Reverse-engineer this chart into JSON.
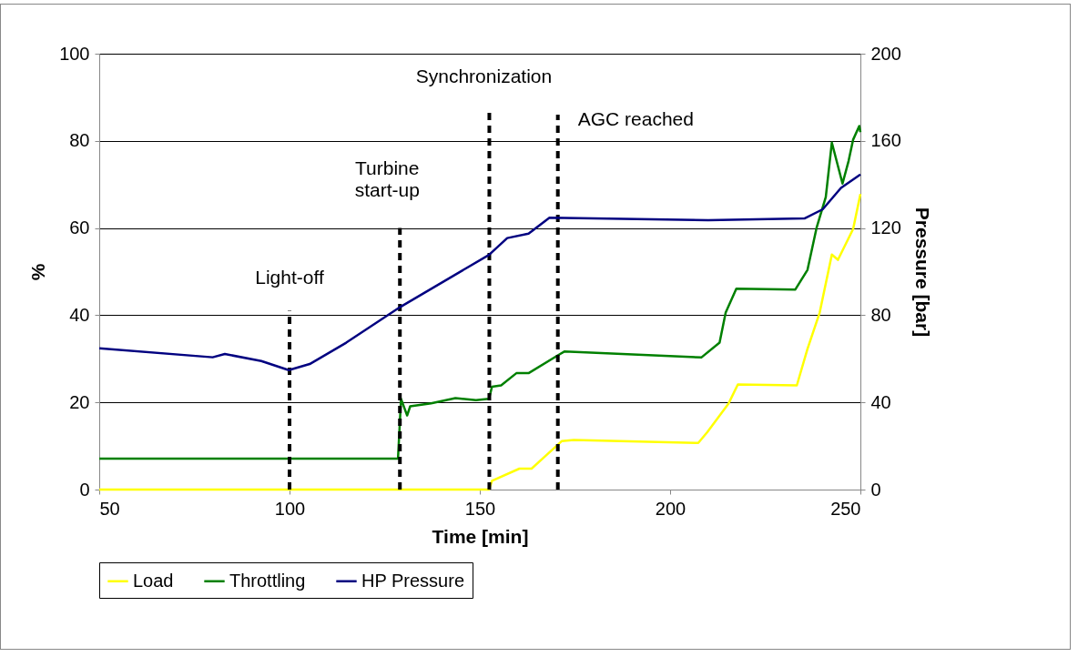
{
  "chart_data": {
    "type": "line",
    "xlabel": "Time [min]",
    "ylabel": "%",
    "y2label": "Pressure [bar]",
    "xlim": [
      50,
      250
    ],
    "xticks": [
      50,
      100,
      150,
      200,
      250
    ],
    "ylim": [
      0,
      100
    ],
    "yticks": [
      0,
      20,
      40,
      60,
      80,
      100
    ],
    "y2lim": [
      0,
      200
    ],
    "y2ticks": [
      0,
      40,
      80,
      120,
      160,
      200
    ],
    "grid": "y",
    "legend": "bottom",
    "marker": "none",
    "line_style": "solid",
    "series": [
      {
        "name": "Load",
        "color": "#ffff00",
        "x": [
          50,
          152.4,
          153.2,
          160.4,
          163.6,
          171.5,
          174.7,
          207.4,
          209.8,
          215.4,
          217.8,
          233.3,
          236.1,
          239.3,
          242.5,
          244.1,
          248.1,
          250
        ],
        "values": [
          0,
          0,
          2.0,
          4.8,
          4.8,
          11.1,
          11.4,
          10.7,
          13.2,
          19.8,
          24.1,
          23.9,
          32.3,
          40.6,
          53.9,
          52.7,
          59.8,
          67.8
        ]
      },
      {
        "name": "Throttling",
        "color": "#008000",
        "x": [
          50,
          128.5,
          129.3,
          130.9,
          131.7,
          137.2,
          143.6,
          149,
          152.4,
          153.2,
          155.6,
          159.6,
          162.8,
          170.7,
          172.3,
          208.2,
          213,
          214.6,
          217.4,
          232.9,
          236.1,
          238.5,
          240.9,
          242.5,
          245.3,
          246.9,
          248.1,
          249.7,
          250
        ],
        "values": [
          7.1,
          7.1,
          20.8,
          17.0,
          19.1,
          19.8,
          21.0,
          20.5,
          20.8,
          23.6,
          23.9,
          26.7,
          26.7,
          30.9,
          31.7,
          30.3,
          33.7,
          40.6,
          46.1,
          45.9,
          50.4,
          60.1,
          67.1,
          79.6,
          70.2,
          75.4,
          80.3,
          83.4,
          82
        ]
      },
      {
        "name": "HP Pressure",
        "color": "#000080",
        "axis": "y2",
        "x": [
          50,
          79.8,
          83,
          92.6,
          99.8,
          105.3,
          114.9,
          129.3,
          152.4,
          157.2,
          162.8,
          168.3,
          210,
          235.3,
          240.1,
          244.9,
          250
        ],
        "values": [
          64.8,
          60.7,
          62.2,
          59,
          54.8,
          57.6,
          67.4,
          84,
          107.7,
          115.4,
          117.4,
          124.7,
          123.6,
          124.4,
          128.6,
          138.4,
          144.6
        ]
      }
    ],
    "ref_lines": [
      {
        "axis": "x",
        "value": 100,
        "line_style": "dashed",
        "label": "Light-off"
      },
      {
        "axis": "x",
        "value": 129,
        "line_style": "dashed",
        "label": "Turbine\nstart-up"
      },
      {
        "axis": "x",
        "value": 152.5,
        "line_style": "dashed",
        "label": "Synchronization"
      },
      {
        "axis": "x",
        "value": 170.5,
        "line_style": "dashed",
        "label": "AGC reached"
      }
    ]
  }
}
